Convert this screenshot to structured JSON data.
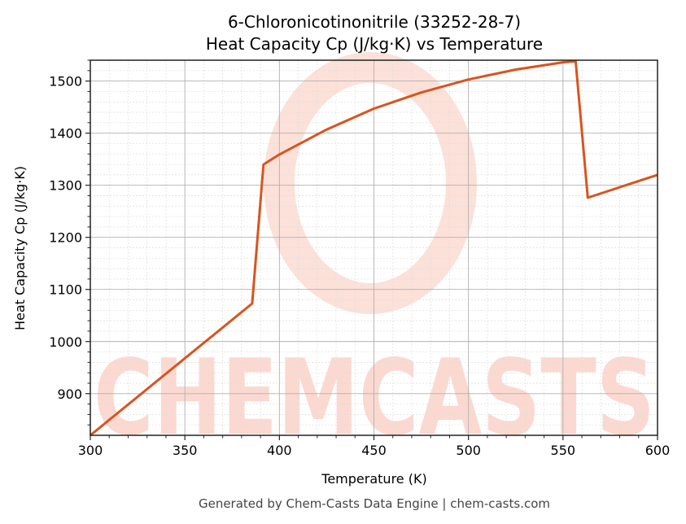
{
  "chart_data": {
    "type": "line",
    "title": "6-Chloronicotinonitrile (33252-28-7)",
    "subtitle": "Heat Capacity Cp (J/kg·K) vs Temperature",
    "xlabel": "Temperature (K)",
    "ylabel": "Heat Capacity Cp (J/kg·K)",
    "xlim": [
      300,
      600
    ],
    "ylim": [
      820,
      1540
    ],
    "xticks": [
      300,
      350,
      400,
      450,
      500,
      550,
      600
    ],
    "yticks": [
      900,
      1000,
      1100,
      1200,
      1300,
      1400,
      1500
    ],
    "grid": true,
    "legend": null,
    "series": [
      {
        "name": "Cp",
        "color": "#d9541e",
        "x": [
          300,
          385.6,
          391.6,
          400,
          425,
          450,
          475,
          500,
          525,
          550,
          556.7,
          563.1,
          600
        ],
        "y": [
          820,
          1073,
          1340,
          1359,
          1407,
          1447,
          1478,
          1503,
          1522,
          1536,
          1538,
          1276,
          1320
        ]
      }
    ]
  },
  "footer": "Generated by Chem-Casts Data Engine | chem-casts.com",
  "watermark": "CHEMCASTS",
  "colors": {
    "line": "#d9541e",
    "watermark": "#fbd9d0",
    "major_grid": "#b0b0b0",
    "minor_grid": "#dddddd"
  }
}
